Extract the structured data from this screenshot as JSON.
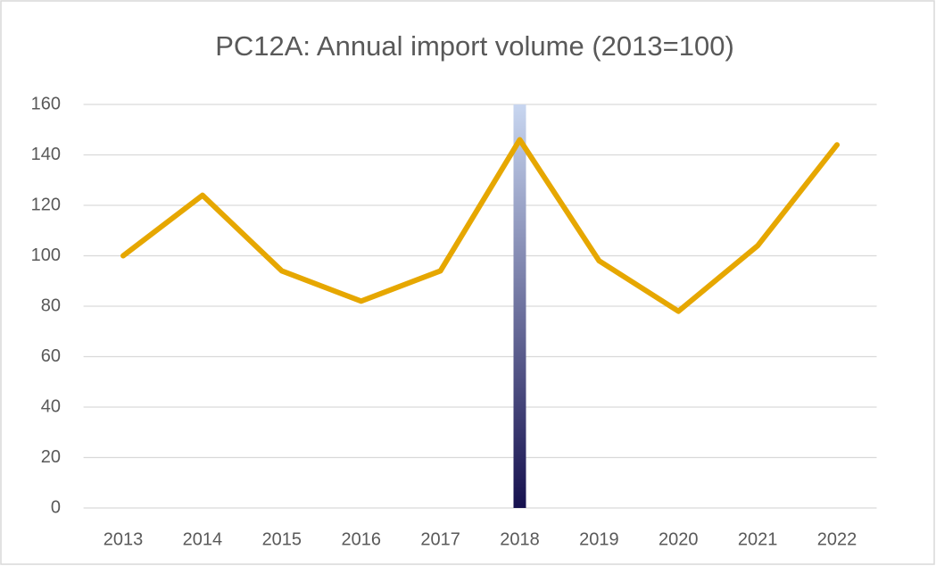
{
  "chart_data": {
    "type": "line",
    "title": "PC12A: Annual import volume (2013=100)",
    "categories": [
      "2013",
      "2014",
      "2015",
      "2016",
      "2017",
      "2018",
      "2019",
      "2020",
      "2021",
      "2022"
    ],
    "series": [
      {
        "type": "line",
        "color": "#e6a700",
        "values": [
          100,
          124,
          94,
          82,
          94,
          146,
          98,
          78,
          104,
          144
        ]
      },
      {
        "type": "bar",
        "color": [
          "#c8d6f0",
          "#16114f"
        ],
        "values": [
          null,
          null,
          null,
          null,
          null,
          160,
          null,
          null,
          null,
          null
        ]
      }
    ],
    "ylim": [
      0,
      160
    ],
    "yticks": [
      0,
      20,
      40,
      60,
      80,
      100,
      120,
      140,
      160
    ],
    "grid": true
  }
}
